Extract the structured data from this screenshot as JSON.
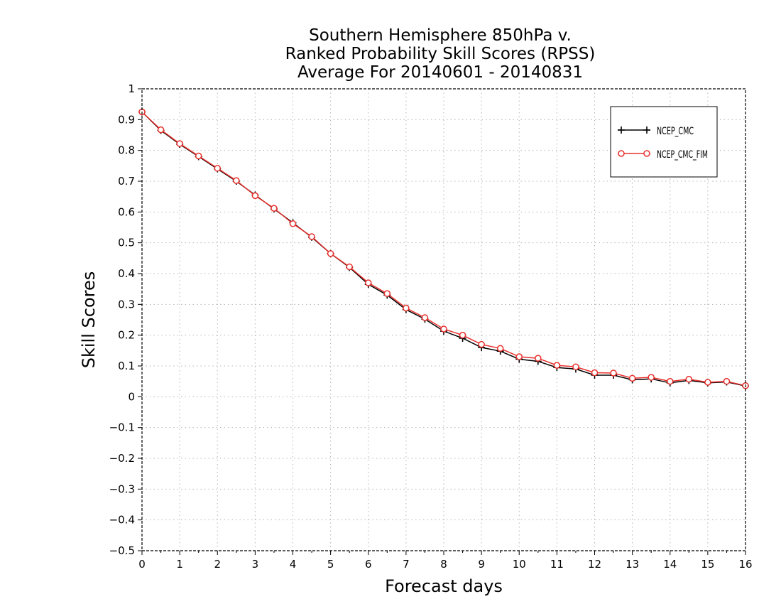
{
  "chart_data": {
    "type": "line",
    "title": [
      "Southern Hemisphere 850hPa v.",
      "Ranked Probability Skill Scores (RPSS)",
      "Average For 20140601 - 20140831"
    ],
    "xlabel": "Forecast days",
    "ylabel": "Skill Scores",
    "xlim": [
      0,
      16
    ],
    "ylim": [
      -0.5,
      1
    ],
    "xticks": [
      0,
      1,
      2,
      3,
      4,
      5,
      6,
      7,
      8,
      9,
      10,
      11,
      12,
      13,
      14,
      15,
      16
    ],
    "yticks": [
      -0.5,
      -0.4,
      -0.3,
      -0.2,
      -0.1,
      0,
      0.1,
      0.2,
      0.3,
      0.4,
      0.5,
      0.6,
      0.7,
      0.8,
      0.9,
      1
    ],
    "grid": true,
    "legend_position": "top-right",
    "x": [
      0,
      0.5,
      1,
      1.5,
      2,
      2.5,
      3,
      3.5,
      4,
      4.5,
      5,
      5.5,
      6,
      6.5,
      7,
      7.5,
      8,
      8.5,
      9,
      9.5,
      10,
      10.5,
      11,
      11.5,
      12,
      12.5,
      13,
      13.5,
      14,
      14.5,
      15,
      15.5,
      16
    ],
    "series": [
      {
        "name": "NCEP_CMC",
        "color": "#000000",
        "marker": "plus",
        "values": [
          0.925,
          0.865,
          0.82,
          0.78,
          0.74,
          0.7,
          0.655,
          0.61,
          0.565,
          0.518,
          0.465,
          0.42,
          0.365,
          0.33,
          0.283,
          0.252,
          0.213,
          0.19,
          0.16,
          0.148,
          0.122,
          0.115,
          0.095,
          0.09,
          0.07,
          0.07,
          0.055,
          0.058,
          0.045,
          0.053,
          0.045,
          0.048,
          0.035
        ]
      },
      {
        "name": "NCEP_CMC_FIM",
        "color": "#e8302c",
        "marker": "circle",
        "values": [
          0.925,
          0.867,
          0.822,
          0.782,
          0.742,
          0.702,
          0.653,
          0.612,
          0.562,
          0.52,
          0.465,
          0.422,
          0.37,
          0.335,
          0.288,
          0.257,
          0.22,
          0.2,
          0.17,
          0.157,
          0.13,
          0.125,
          0.102,
          0.097,
          0.078,
          0.077,
          0.06,
          0.063,
          0.05,
          0.057,
          0.047,
          0.05,
          0.036
        ]
      }
    ]
  }
}
